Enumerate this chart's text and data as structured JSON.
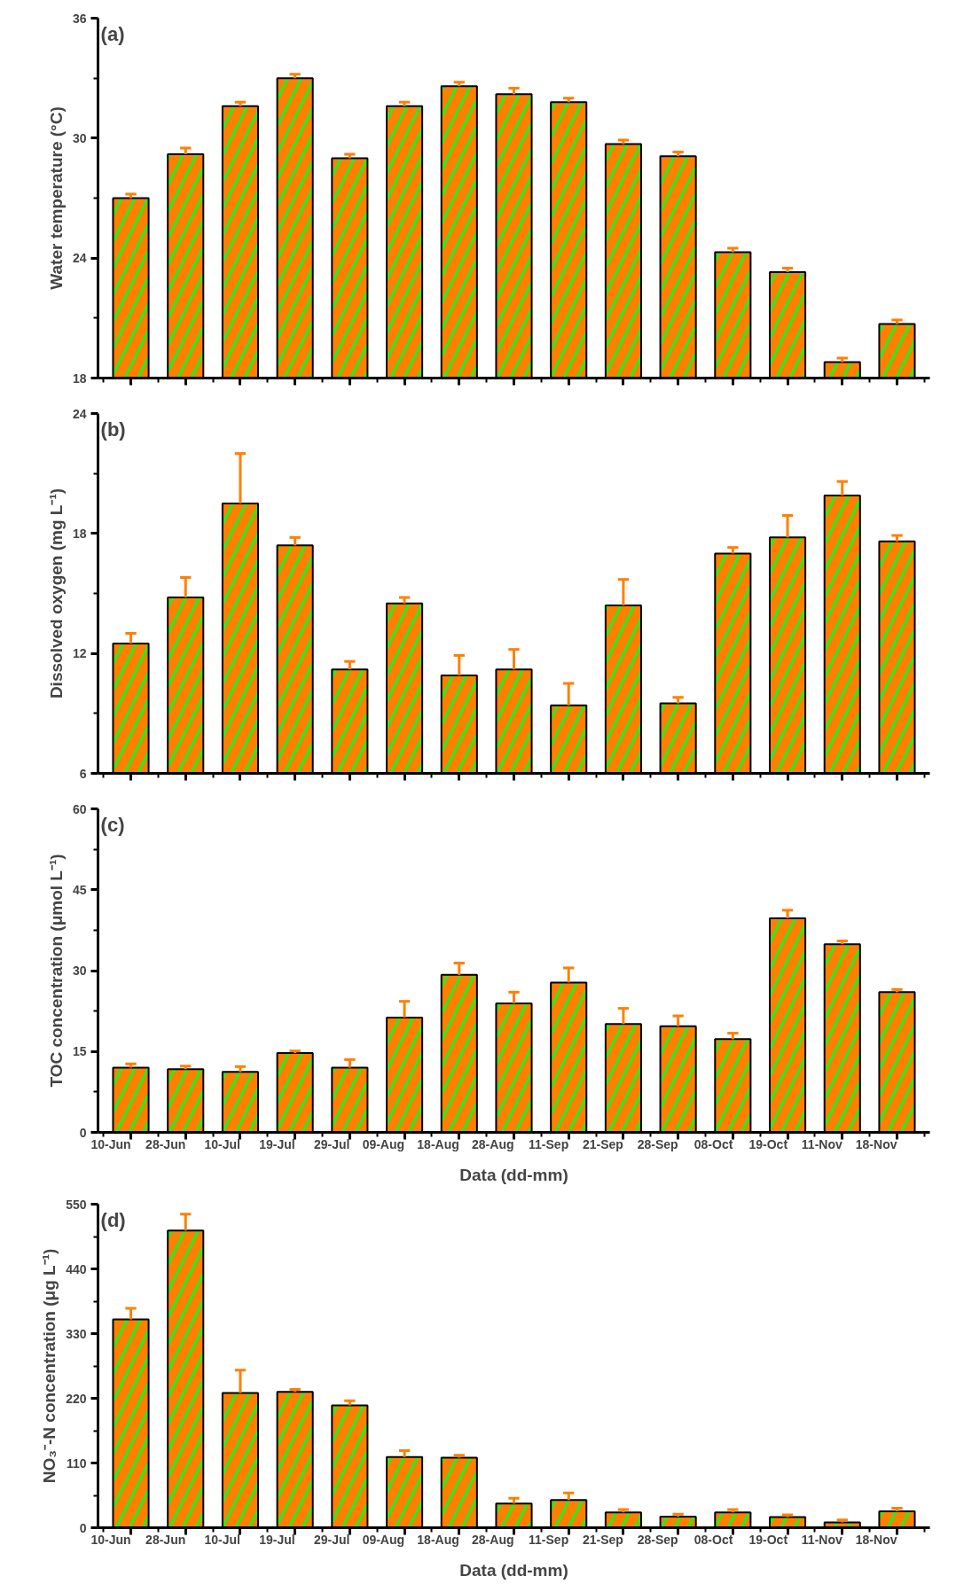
{
  "chart_data": [
    {
      "type": "bar",
      "ylabel": "Water temperature (°C)",
      "annotations": [
        "(a)"
      ],
      "categories": [
        null,
        null,
        null,
        null,
        null,
        null,
        null,
        null,
        null,
        null,
        null,
        null,
        null,
        null,
        null
      ],
      "series": [
        {
          "color": "#ff8000",
          "values": [
            27.0,
            29.2,
            31.6,
            33.0,
            29.0,
            31.6,
            32.6,
            32.2,
            31.8,
            29.7,
            29.1,
            24.3,
            23.3,
            18.8,
            20.7
          ],
          "errors": [
            [
              27.0,
              27.2
            ],
            [
              29.2,
              29.5
            ],
            [
              31.6,
              31.8
            ],
            [
              33.0,
              33.2
            ],
            [
              29.0,
              29.2
            ],
            [
              31.6,
              31.8
            ],
            [
              32.6,
              32.8
            ],
            [
              32.2,
              32.5
            ],
            [
              31.8,
              32.0
            ],
            [
              29.7,
              29.9
            ],
            [
              29.1,
              29.3
            ],
            [
              24.3,
              24.5
            ],
            [
              23.3,
              23.5
            ],
            [
              18.8,
              19.0
            ],
            [
              20.7,
              20.9
            ]
          ]
        }
      ],
      "ylim": [
        18,
        36
      ],
      "yticks": [
        18,
        24,
        30,
        36
      ],
      "grid": false
    },
    {
      "type": "bar",
      "ylabel": "Dissolved oxygen (mg L⁻¹)",
      "annotations": [
        "(b)"
      ],
      "categories": [
        null,
        null,
        null,
        null,
        null,
        null,
        null,
        null,
        null,
        null,
        null,
        null,
        null,
        null,
        null
      ],
      "series": [
        {
          "color": "#ff8000",
          "values": [
            12.5,
            14.8,
            19.5,
            17.4,
            11.2,
            14.5,
            10.9,
            11.2,
            9.4,
            14.4,
            9.5,
            17.0,
            17.8,
            19.9,
            17.6
          ],
          "errors": [
            [
              12.5,
              13.0
            ],
            [
              14.8,
              15.8
            ],
            [
              19.5,
              22.0
            ],
            [
              17.4,
              17.8
            ],
            [
              11.2,
              11.6
            ],
            [
              14.5,
              14.8
            ],
            [
              10.9,
              11.9
            ],
            [
              11.2,
              12.2
            ],
            [
              9.4,
              10.5
            ],
            [
              14.4,
              15.7
            ],
            [
              9.5,
              9.8
            ],
            [
              17.0,
              17.3
            ],
            [
              17.8,
              18.9
            ],
            [
              19.9,
              20.6
            ],
            [
              17.6,
              17.9
            ]
          ]
        }
      ],
      "ylim": [
        6,
        24
      ],
      "yticks": [
        6,
        12,
        18,
        24
      ],
      "grid": false
    },
    {
      "type": "bar",
      "ylabel": "TOC concentration (μmol L⁻¹)",
      "xlabel": "Data (dd-mm)",
      "annotations": [
        "(c)"
      ],
      "categories": [
        "10-Jun",
        "28-Jun",
        "10-Jul",
        "19-Jul",
        "29-Jul",
        "09-Aug",
        "18-Aug",
        "28-Aug",
        "11-Sep",
        "21-Sep",
        "28-Sep",
        "08-Oct",
        "19-Oct",
        "11-Nov",
        "18-Nov"
      ],
      "series": [
        {
          "color": "#ff8000",
          "values": [
            12.0,
            11.7,
            11.2,
            14.7,
            12.0,
            21.3,
            29.2,
            23.9,
            27.8,
            20.1,
            19.7,
            17.3,
            39.7,
            34.9,
            26.0
          ],
          "errors": [
            [
              12.0,
              12.7
            ],
            [
              11.7,
              12.3
            ],
            [
              11.2,
              12.2
            ],
            [
              14.7,
              15.1
            ],
            [
              12.0,
              13.5
            ],
            [
              21.3,
              24.3
            ],
            [
              29.2,
              31.4
            ],
            [
              23.9,
              26.0
            ],
            [
              27.8,
              30.5
            ],
            [
              20.1,
              23.0
            ],
            [
              19.7,
              21.6
            ],
            [
              17.3,
              18.4
            ],
            [
              39.7,
              41.2
            ],
            [
              34.9,
              35.5
            ],
            [
              26.0,
              26.5
            ]
          ]
        }
      ],
      "ylim": [
        0,
        60
      ],
      "yticks": [
        0,
        15,
        30,
        45,
        60
      ],
      "grid": false
    },
    {
      "type": "bar",
      "ylabel": "NO₃⁻-N concentration (μg L⁻¹)",
      "xlabel": "Data (dd-mm)",
      "annotations": [
        "(d)"
      ],
      "categories": [
        "10-Jun",
        "28-Jun",
        "10-Jul",
        "19-Jul",
        "29-Jul",
        "09-Aug",
        "18-Aug",
        "28-Aug",
        "11-Sep",
        "21-Sep",
        "28-Sep",
        "08-Oct",
        "19-Oct",
        "11-Nov",
        "18-Nov"
      ],
      "series": [
        {
          "color": "#ff8000",
          "values": [
            354,
            505,
            229,
            231,
            208,
            120,
            119,
            41,
            47,
            26,
            19,
            26,
            18,
            9,
            28
          ],
          "errors": [
            [
              354,
              373
            ],
            [
              505,
              533
            ],
            [
              229,
              268
            ],
            [
              231,
              235
            ],
            [
              208,
              216
            ],
            [
              120,
              131
            ],
            [
              119,
              123
            ],
            [
              41,
              50
            ],
            [
              47,
              59
            ],
            [
              26,
              31
            ],
            [
              19,
              23
            ],
            [
              26,
              31
            ],
            [
              18,
              22
            ],
            [
              9,
              13
            ],
            [
              28,
              33
            ]
          ]
        }
      ],
      "ylim": [
        0,
        550
      ],
      "yticks": [
        0,
        110,
        220,
        330,
        440,
        550
      ],
      "grid": false
    }
  ]
}
